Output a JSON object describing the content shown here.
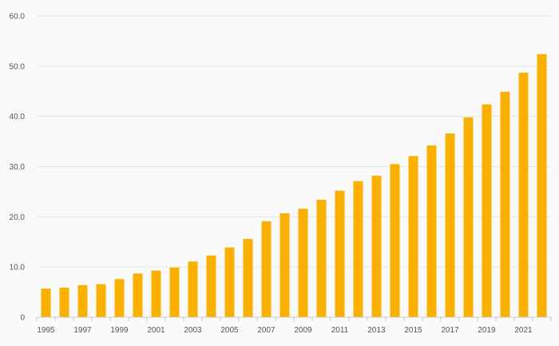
{
  "chart_data": {
    "type": "bar",
    "title": "",
    "xlabel": "",
    "ylabel": "",
    "categories": [
      "1995",
      "1996",
      "1997",
      "1998",
      "1999",
      "2000",
      "2001",
      "2002",
      "2003",
      "2004",
      "2005",
      "2006",
      "2007",
      "2008",
      "2009",
      "2010",
      "2011",
      "2012",
      "2013",
      "2014",
      "2015",
      "2016",
      "2017",
      "2018",
      "2019",
      "2020",
      "2021",
      "2022"
    ],
    "values": [
      5.7,
      5.9,
      6.4,
      6.6,
      7.6,
      8.7,
      9.3,
      9.9,
      11.1,
      12.3,
      13.9,
      15.6,
      19.1,
      20.7,
      21.6,
      23.4,
      25.2,
      27.1,
      28.2,
      30.5,
      32.1,
      34.2,
      36.6,
      39.8,
      42.4,
      44.9,
      48.7,
      52.4
    ],
    "ylim": [
      0,
      60
    ],
    "yticks": [
      0,
      10,
      20,
      30,
      40,
      50,
      60
    ],
    "ytick_labels": [
      "0",
      "10.0",
      "20.0",
      "30.0",
      "40.0",
      "50.0",
      "60.0"
    ],
    "xtick_labels": [
      "1995",
      "1997",
      "1999",
      "2001",
      "2003",
      "2005",
      "2007",
      "2009",
      "2011",
      "2013",
      "2015",
      "2017",
      "2019",
      "2021"
    ],
    "grid": true,
    "legend": "none",
    "bar_color": "#f9b000",
    "grid_color": "#e6e6e6",
    "axis_color": "#cccccc",
    "label_color": "#555555"
  }
}
